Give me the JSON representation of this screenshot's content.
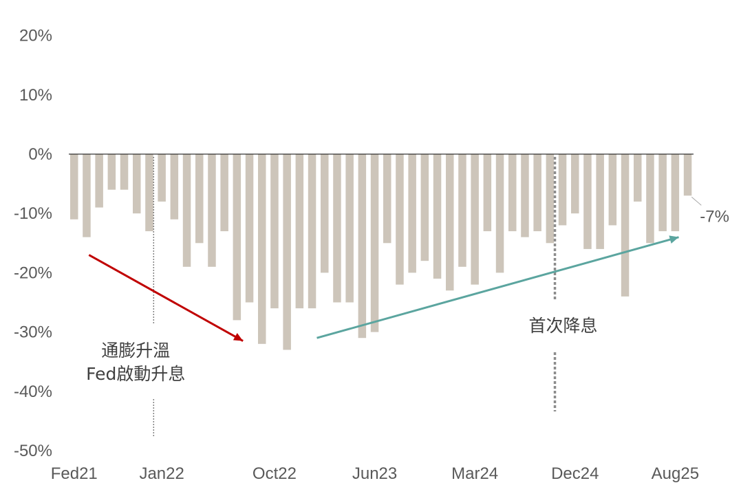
{
  "chart_data": {
    "type": "bar",
    "title": "",
    "xlabel": "",
    "ylabel": "",
    "ylim": [
      -50,
      20
    ],
    "y_ticks": [
      "20%",
      "10%",
      "0%",
      "-10%",
      "-20%",
      "-30%",
      "-40%",
      "-50%"
    ],
    "y_tick_values": [
      20,
      10,
      0,
      -10,
      -20,
      -30,
      -40,
      -50
    ],
    "x_tick_labels": [
      "Fed21",
      "Jan22",
      "Oct22",
      "Jun23",
      "Mar24",
      "Dec24",
      "Aug25"
    ],
    "x_tick_indices": [
      0,
      7,
      16,
      24,
      32,
      40,
      48
    ],
    "grid": false,
    "bar_color": "#cdc5ba",
    "values": [
      -11,
      -14,
      -9,
      -6,
      -6,
      -10,
      -13,
      -8,
      -11,
      -19,
      -15,
      -19,
      -13,
      -28,
      -25,
      -32,
      -26,
      -33,
      -26,
      -26,
      -20,
      -25,
      -25,
      -31,
      -30,
      -15,
      -22,
      -20,
      -18,
      -21,
      -23,
      -19,
      -22,
      -13,
      -20,
      -13,
      -14,
      -13,
      -15,
      -12,
      -10,
      -16,
      -16,
      -12,
      -24,
      -8,
      -15,
      -13,
      -13,
      -7
    ],
    "data_label": {
      "text": "-7%",
      "index": 49,
      "value": -7
    },
    "annotations": [
      {
        "id": "inflation",
        "lines": [
          "通膨升溫",
          "Fed啟動升息"
        ],
        "at_index": 6.5,
        "color": "#404040"
      },
      {
        "id": "first_cut",
        "lines": [
          "首次降息"
        ],
        "at_index": 38.6,
        "color": "#404040"
      }
    ],
    "trend_lines": [
      {
        "id": "down",
        "color": "#c00000",
        "from": {
          "index": 1.5,
          "value": -17
        },
        "to": {
          "index": 13.8,
          "value": -31.5
        }
      },
      {
        "id": "up",
        "color": "#5ba59f",
        "from": {
          "index": 19.7,
          "value": -31
        },
        "to": {
          "index": 48.6,
          "value": -14
        }
      }
    ]
  }
}
